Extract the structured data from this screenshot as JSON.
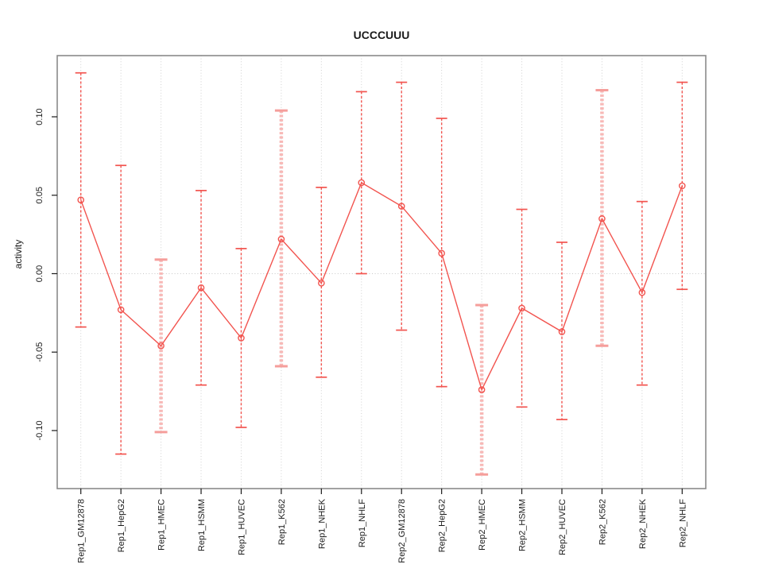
{
  "window": {
    "background_color": "#ffffff"
  },
  "chart_data": {
    "type": "line",
    "subtype": "points-with-error-bars",
    "title": "UCCCUUU",
    "xlabel": "",
    "ylabel": "activity",
    "categories": [
      "Rep1_GM12878",
      "Rep1_HepG2",
      "Rep1_HMEC",
      "Rep1_HSMM",
      "Rep1_HUVEC",
      "Rep1_K562",
      "Rep1_NHEK",
      "Rep1_NHLF",
      "Rep2_GM12878",
      "Rep2_HepG2",
      "Rep2_HMEC",
      "Rep2_HSMM",
      "Rep2_HUVEC",
      "Rep2_K562",
      "Rep2_NHEK",
      "Rep2_NHLF"
    ],
    "series": [
      {
        "name": "activity",
        "means": [
          0.047,
          -0.023,
          -0.046,
          -0.009,
          -0.041,
          0.022,
          -0.006,
          0.058,
          0.043,
          0.013,
          -0.074,
          -0.022,
          -0.037,
          0.035,
          -0.012,
          0.056
        ],
        "upper": [
          0.128,
          0.069,
          0.009,
          0.053,
          0.016,
          0.104,
          0.055,
          0.116,
          0.122,
          0.099,
          -0.02,
          0.041,
          0.02,
          0.117,
          0.046,
          0.122
        ],
        "lower": [
          -0.034,
          -0.115,
          -0.101,
          -0.071,
          -0.098,
          -0.059,
          -0.066,
          0.0,
          -0.036,
          -0.072,
          -0.128,
          -0.085,
          -0.093,
          -0.046,
          -0.071,
          -0.01
        ]
      }
    ],
    "thick_error_bars": [
      false,
      false,
      true,
      false,
      false,
      true,
      false,
      false,
      false,
      false,
      true,
      false,
      false,
      true,
      false,
      false
    ],
    "ytick_labels": [
      "0.10",
      "0.05",
      "0.00",
      "-0.05",
      "-0.10"
    ],
    "ylim": [
      -0.137,
      0.139
    ],
    "zero_line": 0.0,
    "grid": "vertical dotted line per category, dotted horizontal line at zero",
    "legend": "none",
    "point_marker": "open-circle",
    "colors": {
      "series_red": "#f2544f",
      "thick_bar_pink": "#f8b8b6",
      "thick_cap_pink": "#f59e9b",
      "grid_gray": "#cfcfcf",
      "zero_line_gray": "#c9c9c9",
      "box_gray": "#8a8a8a",
      "tick_black": "#1a1a1a"
    }
  }
}
